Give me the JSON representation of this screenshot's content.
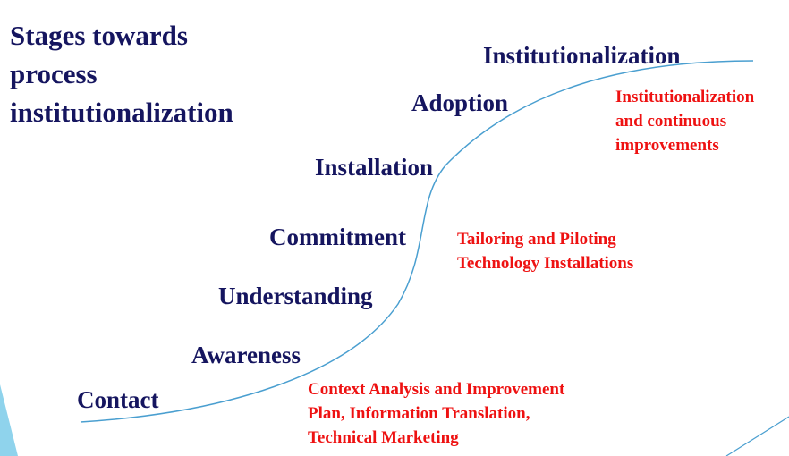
{
  "title_lines": [
    "Stages towards",
    "process",
    "institutionalization"
  ],
  "stages": {
    "institutionalization": "Institutionalization",
    "adoption": "Adoption",
    "installation": "Installation",
    "commitment": "Commitment",
    "understanding": "Understanding",
    "awareness": "Awareness",
    "contact": "Contact"
  },
  "notes": {
    "top": [
      "Institutionalization",
      "and continuous",
      "improvements"
    ],
    "middle": [
      "Tailoring and Piloting",
      "Technology Installations"
    ],
    "bottom": [
      "Context Analysis and Improvement",
      "Plan, Information Translation,",
      "Technical Marketing"
    ]
  },
  "colors": {
    "stage_text": "#15155f",
    "note_text": "#ee1111",
    "curve": "#4a9fd0",
    "accent_shape": "#8fd3ec"
  }
}
